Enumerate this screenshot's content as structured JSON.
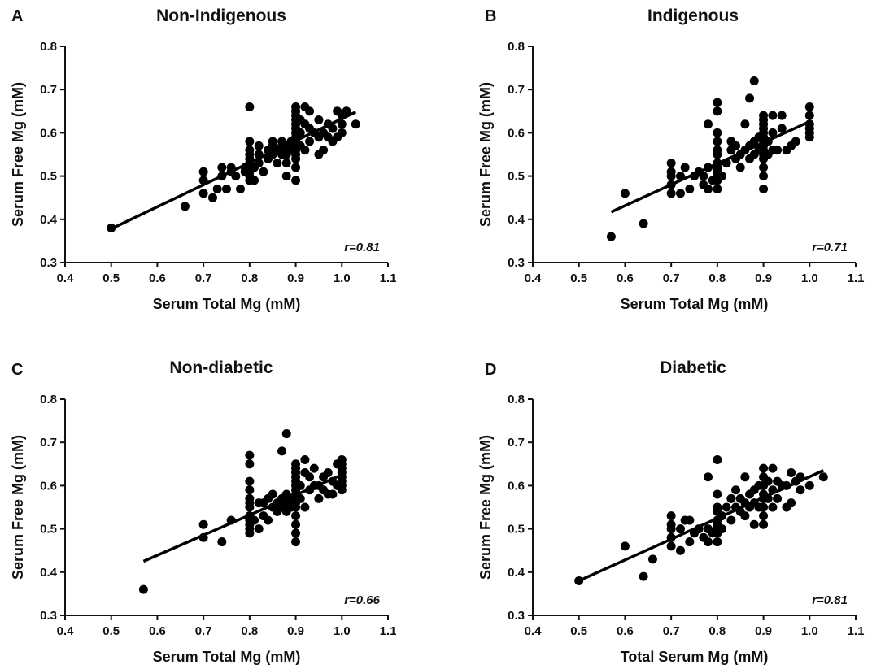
{
  "chart_data": [
    {
      "type": "scatter",
      "panel_letter": "A",
      "title": "Non-Indigenous",
      "xlabel": "Serum Total Mg (mM)",
      "ylabel": "Serum Free Mg (mM)",
      "xlim": [
        0.4,
        1.1
      ],
      "ylim": [
        0.3,
        0.8
      ],
      "xticks": [
        "0.4",
        "0.5",
        "0.6",
        "0.7",
        "0.8",
        "0.9",
        "1.0",
        "1.1"
      ],
      "yticks": [
        "0.3",
        "0.4",
        "0.5",
        "0.6",
        "0.7",
        "0.8"
      ],
      "correlation_label": "r=0.81",
      "regression_line": [
        [
          0.5,
          0.378
        ],
        [
          1.03,
          0.648
        ]
      ],
      "points": [
        [
          0.5,
          0.38
        ],
        [
          0.66,
          0.43
        ],
        [
          0.7,
          0.46
        ],
        [
          0.7,
          0.49
        ],
        [
          0.7,
          0.51
        ],
        [
          0.72,
          0.45
        ],
        [
          0.73,
          0.47
        ],
        [
          0.74,
          0.5
        ],
        [
          0.74,
          0.52
        ],
        [
          0.75,
          0.47
        ],
        [
          0.76,
          0.51
        ],
        [
          0.76,
          0.52
        ],
        [
          0.77,
          0.5
        ],
        [
          0.78,
          0.47
        ],
        [
          0.79,
          0.51
        ],
        [
          0.79,
          0.52
        ],
        [
          0.8,
          0.49
        ],
        [
          0.8,
          0.5
        ],
        [
          0.8,
          0.51
        ],
        [
          0.8,
          0.52
        ],
        [
          0.8,
          0.53
        ],
        [
          0.8,
          0.54
        ],
        [
          0.8,
          0.55
        ],
        [
          0.8,
          0.56
        ],
        [
          0.8,
          0.58
        ],
        [
          0.8,
          0.66
        ],
        [
          0.81,
          0.49
        ],
        [
          0.81,
          0.52
        ],
        [
          0.82,
          0.53
        ],
        [
          0.82,
          0.55
        ],
        [
          0.82,
          0.57
        ],
        [
          0.83,
          0.51
        ],
        [
          0.84,
          0.54
        ],
        [
          0.84,
          0.56
        ],
        [
          0.85,
          0.55
        ],
        [
          0.85,
          0.57
        ],
        [
          0.85,
          0.58
        ],
        [
          0.86,
          0.53
        ],
        [
          0.86,
          0.56
        ],
        [
          0.87,
          0.55
        ],
        [
          0.87,
          0.57
        ],
        [
          0.87,
          0.58
        ],
        [
          0.88,
          0.5
        ],
        [
          0.88,
          0.53
        ],
        [
          0.88,
          0.55
        ],
        [
          0.88,
          0.57
        ],
        [
          0.89,
          0.56
        ],
        [
          0.89,
          0.58
        ],
        [
          0.9,
          0.49
        ],
        [
          0.9,
          0.52
        ],
        [
          0.9,
          0.54
        ],
        [
          0.9,
          0.55
        ],
        [
          0.9,
          0.56
        ],
        [
          0.9,
          0.57
        ],
        [
          0.9,
          0.58
        ],
        [
          0.9,
          0.59
        ],
        [
          0.9,
          0.6
        ],
        [
          0.9,
          0.61
        ],
        [
          0.9,
          0.62
        ],
        [
          0.9,
          0.63
        ],
        [
          0.9,
          0.64
        ],
        [
          0.9,
          0.65
        ],
        [
          0.9,
          0.66
        ],
        [
          0.91,
          0.57
        ],
        [
          0.91,
          0.6
        ],
        [
          0.91,
          0.63
        ],
        [
          0.92,
          0.56
        ],
        [
          0.92,
          0.62
        ],
        [
          0.92,
          0.66
        ],
        [
          0.93,
          0.58
        ],
        [
          0.93,
          0.61
        ],
        [
          0.93,
          0.65
        ],
        [
          0.94,
          0.6
        ],
        [
          0.95,
          0.55
        ],
        [
          0.95,
          0.59
        ],
        [
          0.95,
          0.63
        ],
        [
          0.96,
          0.56
        ],
        [
          0.96,
          0.6
        ],
        [
          0.97,
          0.59
        ],
        [
          0.97,
          0.62
        ],
        [
          0.98,
          0.58
        ],
        [
          0.98,
          0.61
        ],
        [
          0.99,
          0.59
        ],
        [
          0.99,
          0.65
        ],
        [
          1.0,
          0.6
        ],
        [
          1.0,
          0.62
        ],
        [
          1.0,
          0.64
        ],
        [
          1.01,
          0.65
        ],
        [
          1.03,
          0.62
        ]
      ]
    },
    {
      "type": "scatter",
      "panel_letter": "B",
      "title": "Indigenous",
      "xlabel": "Serum Total Mg (mM)",
      "ylabel": "Serum Free Mg (mM)",
      "xlim": [
        0.4,
        1.1
      ],
      "ylim": [
        0.3,
        0.8
      ],
      "xticks": [
        "0.4",
        "0.5",
        "0.6",
        "0.7",
        "0.8",
        "0.9",
        "1.0",
        "1.1"
      ],
      "yticks": [
        "0.3",
        "0.4",
        "0.5",
        "0.6",
        "0.7",
        "0.8"
      ],
      "correlation_label": "r=0.71",
      "regression_line": [
        [
          0.57,
          0.417
        ],
        [
          1.0,
          0.626
        ]
      ],
      "points": [
        [
          0.57,
          0.36
        ],
        [
          0.6,
          0.46
        ],
        [
          0.64,
          0.39
        ],
        [
          0.7,
          0.46
        ],
        [
          0.7,
          0.48
        ],
        [
          0.7,
          0.5
        ],
        [
          0.7,
          0.51
        ],
        [
          0.7,
          0.53
        ],
        [
          0.72,
          0.46
        ],
        [
          0.72,
          0.5
        ],
        [
          0.73,
          0.52
        ],
        [
          0.74,
          0.47
        ],
        [
          0.75,
          0.5
        ],
        [
          0.76,
          0.51
        ],
        [
          0.77,
          0.48
        ],
        [
          0.77,
          0.5
        ],
        [
          0.78,
          0.47
        ],
        [
          0.78,
          0.52
        ],
        [
          0.78,
          0.62
        ],
        [
          0.79,
          0.49
        ],
        [
          0.8,
          0.47
        ],
        [
          0.8,
          0.49
        ],
        [
          0.8,
          0.5
        ],
        [
          0.8,
          0.51
        ],
        [
          0.8,
          0.52
        ],
        [
          0.8,
          0.53
        ],
        [
          0.8,
          0.55
        ],
        [
          0.8,
          0.56
        ],
        [
          0.8,
          0.58
        ],
        [
          0.8,
          0.6
        ],
        [
          0.8,
          0.65
        ],
        [
          0.8,
          0.67
        ],
        [
          0.81,
          0.5
        ],
        [
          0.82,
          0.53
        ],
        [
          0.83,
          0.56
        ],
        [
          0.83,
          0.58
        ],
        [
          0.84,
          0.54
        ],
        [
          0.84,
          0.57
        ],
        [
          0.85,
          0.55
        ],
        [
          0.85,
          0.52
        ],
        [
          0.86,
          0.56
        ],
        [
          0.86,
          0.62
        ],
        [
          0.87,
          0.54
        ],
        [
          0.87,
          0.57
        ],
        [
          0.87,
          0.68
        ],
        [
          0.88,
          0.55
        ],
        [
          0.88,
          0.58
        ],
        [
          0.88,
          0.72
        ],
        [
          0.89,
          0.56
        ],
        [
          0.89,
          0.59
        ],
        [
          0.9,
          0.47
        ],
        [
          0.9,
          0.5
        ],
        [
          0.9,
          0.52
        ],
        [
          0.9,
          0.54
        ],
        [
          0.9,
          0.55
        ],
        [
          0.9,
          0.56
        ],
        [
          0.9,
          0.57
        ],
        [
          0.9,
          0.58
        ],
        [
          0.9,
          0.59
        ],
        [
          0.9,
          0.6
        ],
        [
          0.9,
          0.61
        ],
        [
          0.9,
          0.62
        ],
        [
          0.9,
          0.63
        ],
        [
          0.9,
          0.64
        ],
        [
          0.91,
          0.55
        ],
        [
          0.91,
          0.58
        ],
        [
          0.92,
          0.56
        ],
        [
          0.92,
          0.6
        ],
        [
          0.92,
          0.64
        ],
        [
          0.93,
          0.56
        ],
        [
          0.94,
          0.61
        ],
        [
          0.94,
          0.64
        ],
        [
          0.95,
          0.56
        ],
        [
          0.96,
          0.57
        ],
        [
          0.97,
          0.58
        ],
        [
          1.0,
          0.59
        ],
        [
          1.0,
          0.6
        ],
        [
          1.0,
          0.61
        ],
        [
          1.0,
          0.62
        ],
        [
          1.0,
          0.64
        ],
        [
          1.0,
          0.66
        ]
      ]
    },
    {
      "type": "scatter",
      "panel_letter": "C",
      "title": "Non-diabetic",
      "xlabel": "Serum Total Mg (mM)",
      "ylabel": "Serum Free Mg (mM)",
      "xlim": [
        0.4,
        1.1
      ],
      "ylim": [
        0.3,
        0.8
      ],
      "xticks": [
        "0.4",
        "0.5",
        "0.6",
        "0.7",
        "0.8",
        "0.9",
        "1.0",
        "1.1"
      ],
      "yticks": [
        "0.3",
        "0.4",
        "0.5",
        "0.6",
        "0.7",
        "0.8"
      ],
      "correlation_label": "r=0.66",
      "regression_line": [
        [
          0.57,
          0.425
        ],
        [
          1.0,
          0.625
        ]
      ],
      "points": [
        [
          0.57,
          0.36
        ],
        [
          0.7,
          0.48
        ],
        [
          0.7,
          0.51
        ],
        [
          0.74,
          0.47
        ],
        [
          0.76,
          0.52
        ],
        [
          0.8,
          0.49
        ],
        [
          0.8,
          0.5
        ],
        [
          0.8,
          0.51
        ],
        [
          0.8,
          0.52
        ],
        [
          0.8,
          0.53
        ],
        [
          0.8,
          0.55
        ],
        [
          0.8,
          0.56
        ],
        [
          0.8,
          0.57
        ],
        [
          0.8,
          0.59
        ],
        [
          0.8,
          0.61
        ],
        [
          0.8,
          0.65
        ],
        [
          0.8,
          0.67
        ],
        [
          0.81,
          0.52
        ],
        [
          0.82,
          0.5
        ],
        [
          0.82,
          0.56
        ],
        [
          0.83,
          0.53
        ],
        [
          0.83,
          0.56
        ],
        [
          0.84,
          0.52
        ],
        [
          0.84,
          0.57
        ],
        [
          0.85,
          0.55
        ],
        [
          0.85,
          0.58
        ],
        [
          0.86,
          0.54
        ],
        [
          0.86,
          0.56
        ],
        [
          0.87,
          0.55
        ],
        [
          0.87,
          0.57
        ],
        [
          0.87,
          0.68
        ],
        [
          0.88,
          0.54
        ],
        [
          0.88,
          0.56
        ],
        [
          0.88,
          0.58
        ],
        [
          0.88,
          0.72
        ],
        [
          0.89,
          0.55
        ],
        [
          0.89,
          0.57
        ],
        [
          0.9,
          0.47
        ],
        [
          0.9,
          0.49
        ],
        [
          0.9,
          0.51
        ],
        [
          0.9,
          0.53
        ],
        [
          0.9,
          0.55
        ],
        [
          0.9,
          0.56
        ],
        [
          0.9,
          0.57
        ],
        [
          0.9,
          0.58
        ],
        [
          0.9,
          0.59
        ],
        [
          0.9,
          0.6
        ],
        [
          0.9,
          0.61
        ],
        [
          0.9,
          0.62
        ],
        [
          0.9,
          0.63
        ],
        [
          0.9,
          0.64
        ],
        [
          0.9,
          0.65
        ],
        [
          0.91,
          0.57
        ],
        [
          0.91,
          0.6
        ],
        [
          0.92,
          0.55
        ],
        [
          0.92,
          0.63
        ],
        [
          0.92,
          0.66
        ],
        [
          0.93,
          0.59
        ],
        [
          0.93,
          0.62
        ],
        [
          0.94,
          0.6
        ],
        [
          0.94,
          0.64
        ],
        [
          0.95,
          0.57
        ],
        [
          0.95,
          0.6
        ],
        [
          0.96,
          0.59
        ],
        [
          0.96,
          0.62
        ],
        [
          0.97,
          0.58
        ],
        [
          0.97,
          0.63
        ],
        [
          0.98,
          0.58
        ],
        [
          0.98,
          0.61
        ],
        [
          0.99,
          0.6
        ],
        [
          0.99,
          0.65
        ],
        [
          1.0,
          0.59
        ],
        [
          1.0,
          0.6
        ],
        [
          1.0,
          0.61
        ],
        [
          1.0,
          0.62
        ],
        [
          1.0,
          0.63
        ],
        [
          1.0,
          0.64
        ],
        [
          1.0,
          0.65
        ],
        [
          1.0,
          0.66
        ]
      ]
    },
    {
      "type": "scatter",
      "panel_letter": "D",
      "title": "Diabetic",
      "xlabel": "Total Serum Mg (mM)",
      "ylabel": "Serum Free Mg (mM)",
      "xlim": [
        0.4,
        1.1
      ],
      "ylim": [
        0.3,
        0.8
      ],
      "xticks": [
        "0.4",
        "0.5",
        "0.6",
        "0.7",
        "0.8",
        "0.9",
        "1.0",
        "1.1"
      ],
      "yticks": [
        "0.3",
        "0.4",
        "0.5",
        "0.6",
        "0.7",
        "0.8"
      ],
      "correlation_label": "r=0.81",
      "regression_line": [
        [
          0.5,
          0.38
        ],
        [
          1.03,
          0.635
        ]
      ],
      "points": [
        [
          0.5,
          0.38
        ],
        [
          0.6,
          0.46
        ],
        [
          0.64,
          0.39
        ],
        [
          0.66,
          0.43
        ],
        [
          0.7,
          0.46
        ],
        [
          0.7,
          0.48
        ],
        [
          0.7,
          0.5
        ],
        [
          0.7,
          0.51
        ],
        [
          0.7,
          0.53
        ],
        [
          0.72,
          0.45
        ],
        [
          0.72,
          0.5
        ],
        [
          0.73,
          0.52
        ],
        [
          0.74,
          0.47
        ],
        [
          0.74,
          0.52
        ],
        [
          0.75,
          0.49
        ],
        [
          0.76,
          0.5
        ],
        [
          0.77,
          0.48
        ],
        [
          0.78,
          0.47
        ],
        [
          0.78,
          0.5
        ],
        [
          0.78,
          0.62
        ],
        [
          0.79,
          0.49
        ],
        [
          0.8,
          0.47
        ],
        [
          0.8,
          0.49
        ],
        [
          0.8,
          0.5
        ],
        [
          0.8,
          0.51
        ],
        [
          0.8,
          0.52
        ],
        [
          0.8,
          0.54
        ],
        [
          0.8,
          0.55
        ],
        [
          0.8,
          0.58
        ],
        [
          0.8,
          0.66
        ],
        [
          0.81,
          0.5
        ],
        [
          0.81,
          0.53
        ],
        [
          0.82,
          0.55
        ],
        [
          0.83,
          0.52
        ],
        [
          0.83,
          0.57
        ],
        [
          0.84,
          0.55
        ],
        [
          0.84,
          0.59
        ],
        [
          0.85,
          0.54
        ],
        [
          0.85,
          0.57
        ],
        [
          0.86,
          0.53
        ],
        [
          0.86,
          0.56
        ],
        [
          0.86,
          0.62
        ],
        [
          0.87,
          0.55
        ],
        [
          0.87,
          0.58
        ],
        [
          0.88,
          0.51
        ],
        [
          0.88,
          0.56
        ],
        [
          0.88,
          0.59
        ],
        [
          0.89,
          0.55
        ],
        [
          0.89,
          0.6
        ],
        [
          0.9,
          0.51
        ],
        [
          0.9,
          0.53
        ],
        [
          0.9,
          0.55
        ],
        [
          0.9,
          0.57
        ],
        [
          0.9,
          0.58
        ],
        [
          0.9,
          0.6
        ],
        [
          0.9,
          0.62
        ],
        [
          0.9,
          0.64
        ],
        [
          0.91,
          0.57
        ],
        [
          0.91,
          0.61
        ],
        [
          0.92,
          0.55
        ],
        [
          0.92,
          0.59
        ],
        [
          0.92,
          0.64
        ],
        [
          0.93,
          0.57
        ],
        [
          0.93,
          0.61
        ],
        [
          0.94,
          0.6
        ],
        [
          0.95,
          0.55
        ],
        [
          0.95,
          0.6
        ],
        [
          0.96,
          0.56
        ],
        [
          0.96,
          0.63
        ],
        [
          0.97,
          0.61
        ],
        [
          0.98,
          0.59
        ],
        [
          0.98,
          0.62
        ],
        [
          1.0,
          0.6
        ],
        [
          1.03,
          0.62
        ]
      ]
    }
  ]
}
